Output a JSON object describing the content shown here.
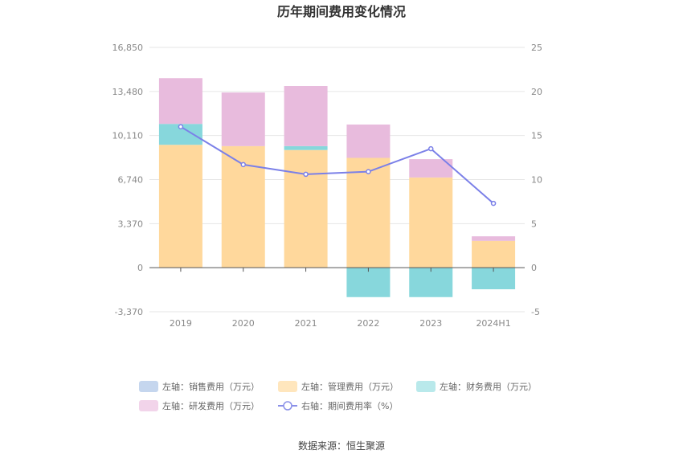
{
  "chart_data": {
    "type": "bar",
    "title": "历年期间费用变化情况",
    "source": "数据来源：恒生聚源",
    "categories": [
      "2019",
      "2020",
      "2021",
      "2022",
      "2023",
      "2024H1"
    ],
    "left_axis": {
      "min": -3370,
      "max": 16850,
      "ticks": [
        -3370,
        0,
        3370,
        6740,
        10110,
        13480,
        16850
      ],
      "tick_labels": [
        "-3,370",
        "0",
        "3,370",
        "6,740",
        "10,110",
        "13,480",
        "16,850"
      ]
    },
    "right_axis": {
      "min": -5,
      "max": 25,
      "ticks": [
        -5,
        0,
        5,
        10,
        15,
        20,
        25
      ],
      "tick_labels": [
        "-5",
        "0",
        "5",
        "10",
        "15",
        "20",
        "25"
      ]
    },
    "series": [
      {
        "name": "左轴：销售费用（万元）",
        "type": "bar",
        "axis": "left",
        "color": "#c5d6ee",
        "legend_color": "#c5d6ee",
        "values": [
          0,
          0,
          0,
          0,
          0,
          0
        ]
      },
      {
        "name": "左轴：管理费用（万元）",
        "type": "bar",
        "axis": "left",
        "color": "#ffd89c",
        "legend_color": "#ffe6bd",
        "values": [
          9400,
          9300,
          9000,
          8400,
          6900,
          2050
        ]
      },
      {
        "name": "左轴：财务费用（万元）",
        "type": "bar",
        "axis": "left",
        "color": "#87d7dc",
        "legend_color": "#b9e9eb",
        "values": [
          1600,
          0,
          300,
          -2250,
          -2250,
          -1650
        ]
      },
      {
        "name": "左轴：研发费用（万元）",
        "type": "bar",
        "axis": "left",
        "color": "#e8bbdd",
        "legend_color": "#f2d4ea",
        "values": [
          3500,
          4100,
          4600,
          2550,
          1400,
          350
        ]
      },
      {
        "name": "右轴：期间费用率（%）",
        "type": "line",
        "axis": "right",
        "color": "#7b80e8",
        "legend_color": "#8a90e8",
        "values": [
          16.0,
          11.7,
          10.6,
          10.9,
          13.5,
          7.3
        ]
      }
    ]
  }
}
